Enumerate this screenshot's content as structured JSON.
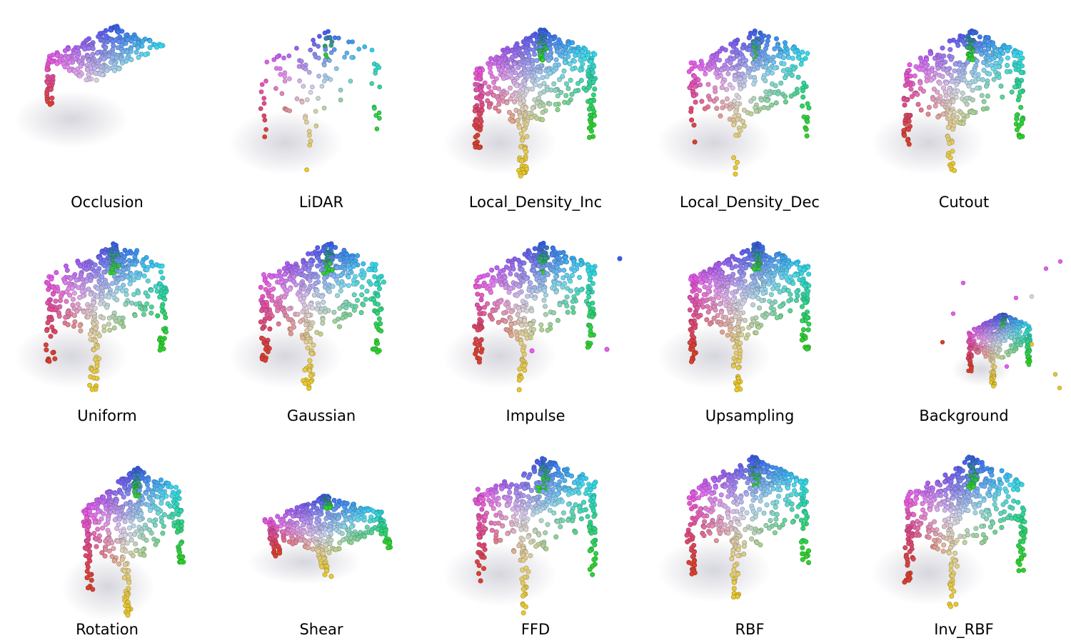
{
  "figure": {
    "panels": [
      {
        "label": "Occlusion",
        "variant": "occlusion"
      },
      {
        "label": "LiDAR",
        "variant": "lidar"
      },
      {
        "label": "Local_Density_Inc",
        "variant": "local_density_inc"
      },
      {
        "label": "Local_Density_Dec",
        "variant": "local_density_dec"
      },
      {
        "label": "Cutout",
        "variant": "cutout"
      },
      {
        "label": "Uniform",
        "variant": "uniform"
      },
      {
        "label": "Gaussian",
        "variant": "gaussian"
      },
      {
        "label": "Impulse",
        "variant": "impulse"
      },
      {
        "label": "Upsampling",
        "variant": "upsampling"
      },
      {
        "label": "Background",
        "variant": "background"
      },
      {
        "label": "Rotation",
        "variant": "rotation"
      },
      {
        "label": "Shear",
        "variant": "shear"
      },
      {
        "label": "FFD",
        "variant": "ffd"
      },
      {
        "label": "RBF",
        "variant": "rbf"
      },
      {
        "label": "Inv_RBF",
        "variant": "inv_rbf"
      }
    ],
    "colors": {
      "top_left": "#e85cf0",
      "top_back": "#3a5cf0",
      "top_right": "#35d8f0",
      "top_front": "#d8d4e6",
      "leg_front_left": "#e8c830",
      "leg_left": "#d84030",
      "leg_right": "#30d030",
      "shadow": "#8a8aa0"
    }
  }
}
